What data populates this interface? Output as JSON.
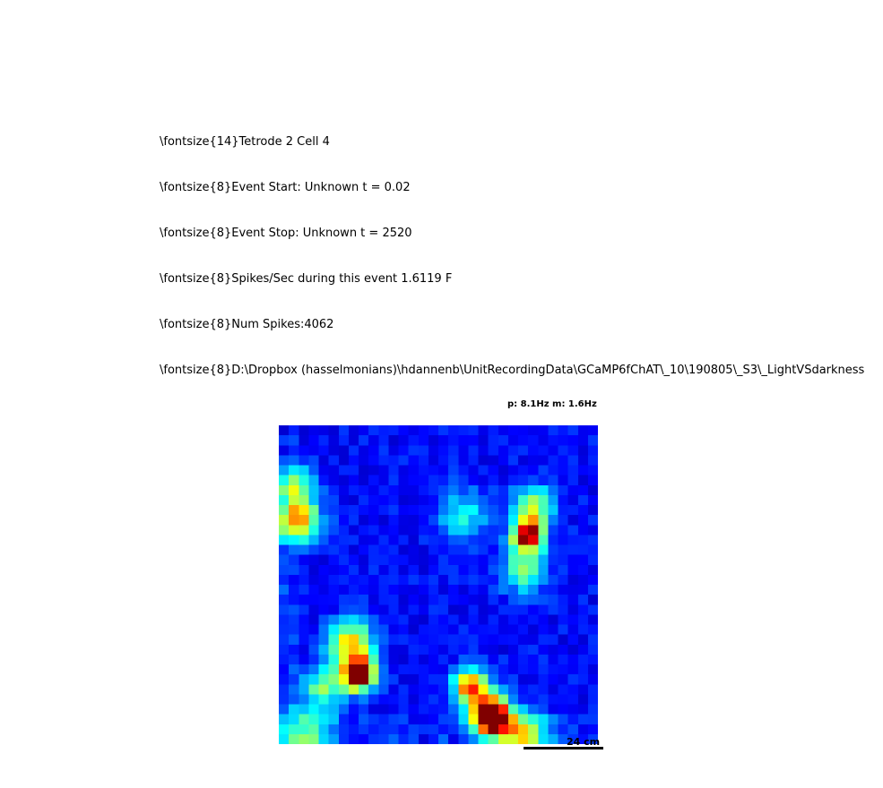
{
  "header_lines": [
    "\\fontsize{14}Tetrode 2 Cell 4",
    "\\fontsize{8}Event Start: Unknown t = 0.02",
    "\\fontsize{8}Event Stop: Unknown t = 2520",
    "\\fontsize{8}Spikes/Sec during this event 1.6119 F",
    "\\fontsize{8}Num Spikes:4062",
    "\\fontsize{8}D:\\Dropbox (hasselmonians)\\hdannenb\\UnitRecordingData\\GCaMP6fChAT\\_10\\190805\\_S3\\_LightVSdarkness"
  ],
  "chart_data": {
    "type": "heatmap",
    "title": "p: 8.1Hz m: 1.6Hz",
    "colormap": "jet",
    "scale_bar_label": "24 cm",
    "peaks": [
      {
        "row": 24.5,
        "col": 7.5,
        "amp": 1.0,
        "sigma": 1.1
      },
      {
        "row": 21.5,
        "col": 6.8,
        "amp": 0.55,
        "sigma": 1.6
      },
      {
        "row": 25.8,
        "col": 4.0,
        "amp": 0.35,
        "sigma": 1.5
      },
      {
        "row": 29.0,
        "col": 21.0,
        "amp": 1.0,
        "sigma": 1.1
      },
      {
        "row": 27.5,
        "col": 20.0,
        "amp": 0.45,
        "sigma": 1.6
      },
      {
        "row": 30.5,
        "col": 24.0,
        "amp": 0.55,
        "sigma": 1.5
      },
      {
        "row": 25.5,
        "col": 18.5,
        "amp": 0.55,
        "sigma": 1.1
      },
      {
        "row": 10.5,
        "col": 24.5,
        "amp": 0.9,
        "sigma": 1.1
      },
      {
        "row": 7.5,
        "col": 25.0,
        "amp": 0.45,
        "sigma": 1.4
      },
      {
        "row": 14.0,
        "col": 24.0,
        "amp": 0.35,
        "sigma": 1.6
      },
      {
        "row": 9.0,
        "col": 1.5,
        "amp": 0.6,
        "sigma": 1.5
      },
      {
        "row": 5.5,
        "col": 1.0,
        "amp": 0.35,
        "sigma": 1.4
      },
      {
        "row": 30.5,
        "col": 2.0,
        "amp": 0.35,
        "sigma": 1.8
      },
      {
        "row": 8.5,
        "col": 18.0,
        "amp": 0.25,
        "sigma": 1.8
      }
    ],
    "grid_rows": 32,
    "grid_cols": 32,
    "baseline": 0.08,
    "peak_rate_hz": 8.1,
    "mean_rate_hz": 1.6
  }
}
